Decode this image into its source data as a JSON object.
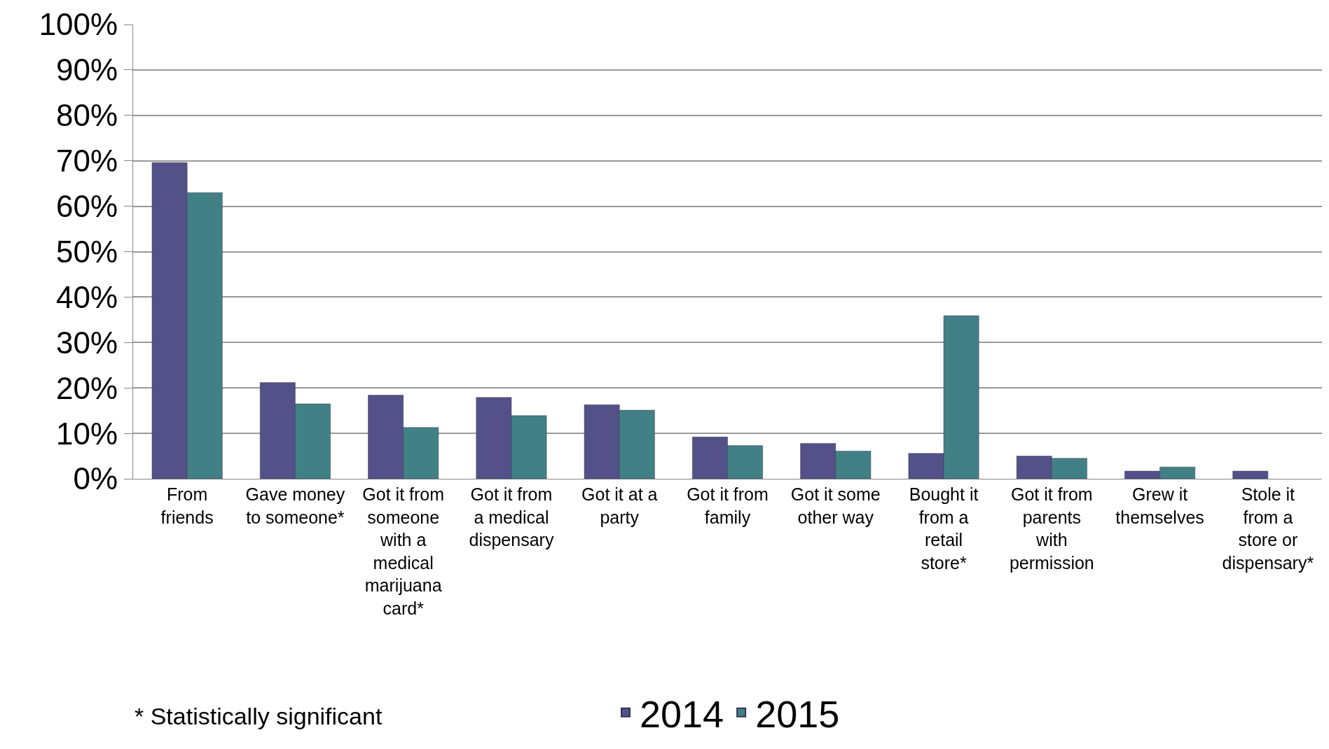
{
  "chart_data": {
    "type": "bar",
    "categories": [
      "From friends",
      "Gave money to someone*",
      "Got it from someone with a medical marijuana card*",
      "Got it from a medical dispensary",
      "Got it at a party",
      "Got it from family",
      "Got it some other way",
      "Bought it from a retail store*",
      "Got it from parents with permission",
      "Grew it themselves",
      "Stole it from a store or dispensary*"
    ],
    "series": [
      {
        "name": "2014",
        "color": "#535188",
        "values": [
          69.6,
          21.2,
          18.4,
          17.9,
          16.3,
          9.2,
          7.8,
          5.6,
          5.0,
          1.7,
          1.7
        ]
      },
      {
        "name": "2015",
        "color": "#418185",
        "values": [
          63.0,
          16.5,
          11.3,
          13.9,
          15.1,
          7.3,
          6.1,
          35.9,
          4.5,
          2.6,
          null
        ]
      }
    ],
    "ylim": [
      0,
      100
    ],
    "yticks": [
      {
        "value": 0,
        "label": "0%"
      },
      {
        "value": 10,
        "label": "10%"
      },
      {
        "value": 20,
        "label": "20%"
      },
      {
        "value": 30,
        "label": "30%"
      },
      {
        "value": 40,
        "label": "40%"
      },
      {
        "value": 50,
        "label": "50%"
      },
      {
        "value": 60,
        "label": "60%"
      },
      {
        "value": 70,
        "label": "70%"
      },
      {
        "value": 80,
        "label": "80%"
      },
      {
        "value": 90,
        "label": "90%"
      },
      {
        "value": 100,
        "label": "100%"
      }
    ],
    "grid": "y",
    "legend": "bottom",
    "annotations": [
      "* Statistically significant"
    ]
  }
}
